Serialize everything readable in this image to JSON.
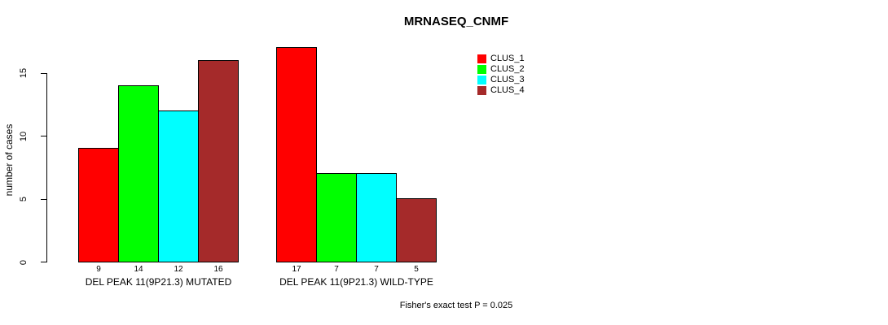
{
  "chart_data": {
    "type": "bar",
    "title": "MRNASEQ_CNMF",
    "ylabel": "number of cases",
    "xlabel": "",
    "ylim": [
      0,
      17
    ],
    "yticks": [
      0,
      5,
      10,
      15
    ],
    "series": [
      "CLUS_1",
      "CLUS_2",
      "CLUS_3",
      "CLUS_4"
    ],
    "colors": [
      "#FF0000",
      "#00FF00",
      "#00FFFF",
      "#A52A2A"
    ],
    "groups": [
      {
        "label": "DEL PEAK 11(9P21.3) MUTATED",
        "values": [
          9,
          14,
          12,
          16
        ]
      },
      {
        "label": "DEL PEAK 11(9P21.3) WILD-TYPE",
        "values": [
          17,
          7,
          7,
          5
        ]
      }
    ],
    "bar_value_labels": true,
    "annotation": "Fisher's exact test P = 0.025",
    "legend_position": "top-right",
    "grid": false,
    "background": "#FFFFFF",
    "axis_color": "#000000"
  }
}
